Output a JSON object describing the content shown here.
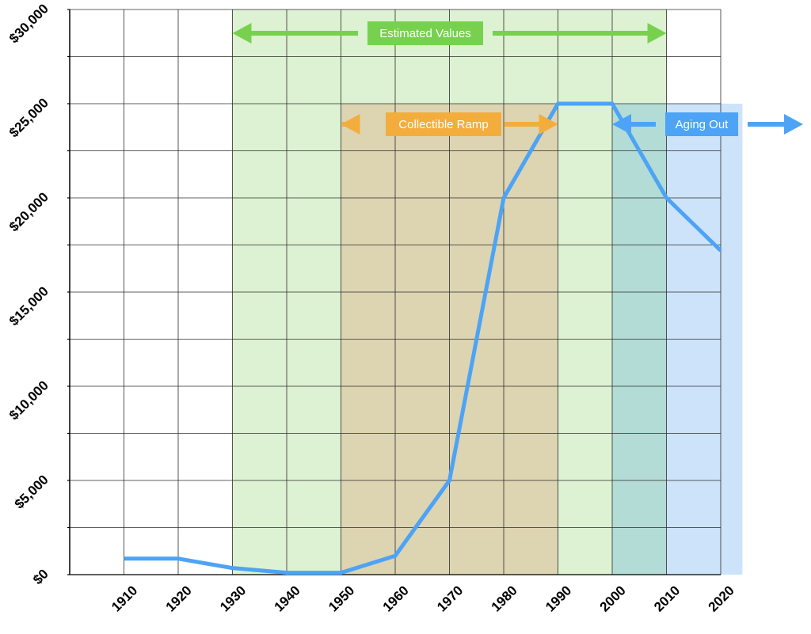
{
  "chart_data": {
    "type": "line",
    "title": "",
    "xlabel": "",
    "ylabel": "",
    "x": [
      1910,
      1920,
      1930,
      1940,
      1950,
      1960,
      1970,
      1980,
      1990,
      2000,
      2010,
      2020
    ],
    "series": [
      {
        "values": [
          850,
          850,
          350,
          100,
          100,
          1000,
          5000,
          20000,
          25000,
          25000,
          20000,
          17200
        ]
      }
    ],
    "xlim": [
      1900,
      2020
    ],
    "ylim": [
      0,
      30000
    ],
    "y_ticks": [
      0,
      5000,
      10000,
      15000,
      20000,
      25000,
      30000
    ],
    "y_tick_labels": [
      "$0",
      "$5,000",
      "$10,000",
      "$15,000",
      "$20,000",
      "$25,000",
      "$30,000"
    ],
    "x_ticks": [
      1910,
      1920,
      1930,
      1940,
      1950,
      1960,
      1970,
      1980,
      1990,
      2000,
      2010,
      2020
    ],
    "x_tick_labels": [
      "1910",
      "1920",
      "1930",
      "1940",
      "1950",
      "1960",
      "1970",
      "1980",
      "1990",
      "2000",
      "2010",
      "2020"
    ],
    "grid": true,
    "line_color": "#4da3f5",
    "bands": [
      {
        "label": "Estimated Values",
        "x_from": 1930,
        "x_to": 2010,
        "y_from": 0,
        "y_to": 30000,
        "fill": "#dcf2d2",
        "arrow_color": "#77d14e",
        "label_bg": "#77d14e"
      },
      {
        "label": "Collectible Ramp",
        "x_from": 1950,
        "x_to": 1990,
        "y_from": 0,
        "y_to": 25000,
        "fill": "#ddd4b2",
        "arrow_color": "#f2ad3c",
        "label_bg": "#f2ad3c"
      },
      {
        "label": "Aging Out",
        "x_from": 2000,
        "x_to": 2024,
        "y_from": 0,
        "y_to": 25000,
        "fill": "#cde3fa",
        "overlap_fill": "#b3dcd6",
        "arrow_color": "#4da3f5",
        "label_bg": "#4da3f5"
      }
    ]
  }
}
